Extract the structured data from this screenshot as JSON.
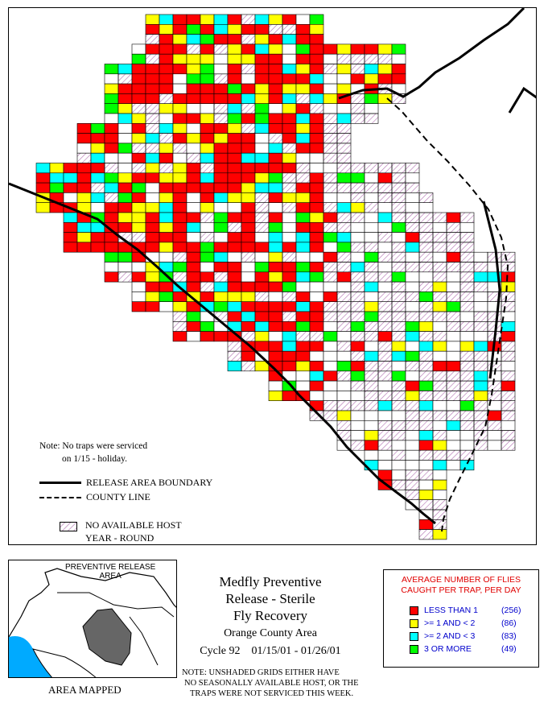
{
  "map": {
    "note_line1": "Note: No traps were serviced",
    "note_line2": "on 1/15 - holiday.",
    "legend_release": "RELEASE AREA BOUNDARY",
    "legend_county": "COUNTY LINE",
    "legend_nohost_line1": "NO AVAILABLE HOST",
    "legend_nohost_line2": "YEAR - ROUND"
  },
  "inset": {
    "label_line1": "PREVENTIVE RELEASE",
    "label_line2": "AREA",
    "caption": "AREA MAPPED"
  },
  "title": {
    "line1": "Medfly Preventive",
    "line2": "Release - Sterile",
    "line3": "Fly Recovery",
    "area": "Orange County Area",
    "cycle": "Cycle 92",
    "dates": "01/15/01 - 01/26/01"
  },
  "bottom_note": {
    "line1": "NOTE: UNSHADED GRIDS EITHER HAVE",
    "line2": "NO SEASONALLY AVAILABLE HOST, OR THE",
    "line3": "TRAPS WERE NOT SERVICED THIS WEEK."
  },
  "key": {
    "header_line1": "AVERAGE NUMBER OF FLIES",
    "header_line2": "CAUGHT PER TRAP, PER DAY",
    "categories": [
      {
        "label": "LESS THAN 1",
        "count": "(256)",
        "color": "#ff0000"
      },
      {
        "label": ">= 1 AND < 2",
        "count": "(86)",
        "color": "#ffff00"
      },
      {
        "label": ">= 2 AND < 3",
        "count": "(83)",
        "color": "#00ffff"
      },
      {
        "label": "3 OR MORE",
        "count": "(49)",
        "color": "#00ff00"
      }
    ]
  },
  "colors": {
    "red": "#ff0000",
    "yellow": "#ffff00",
    "cyan": "#00ffff",
    "green": "#00ff00",
    "hatch": "#b070b0",
    "inset_land": "#666666",
    "ocean": "#00aaff"
  }
}
